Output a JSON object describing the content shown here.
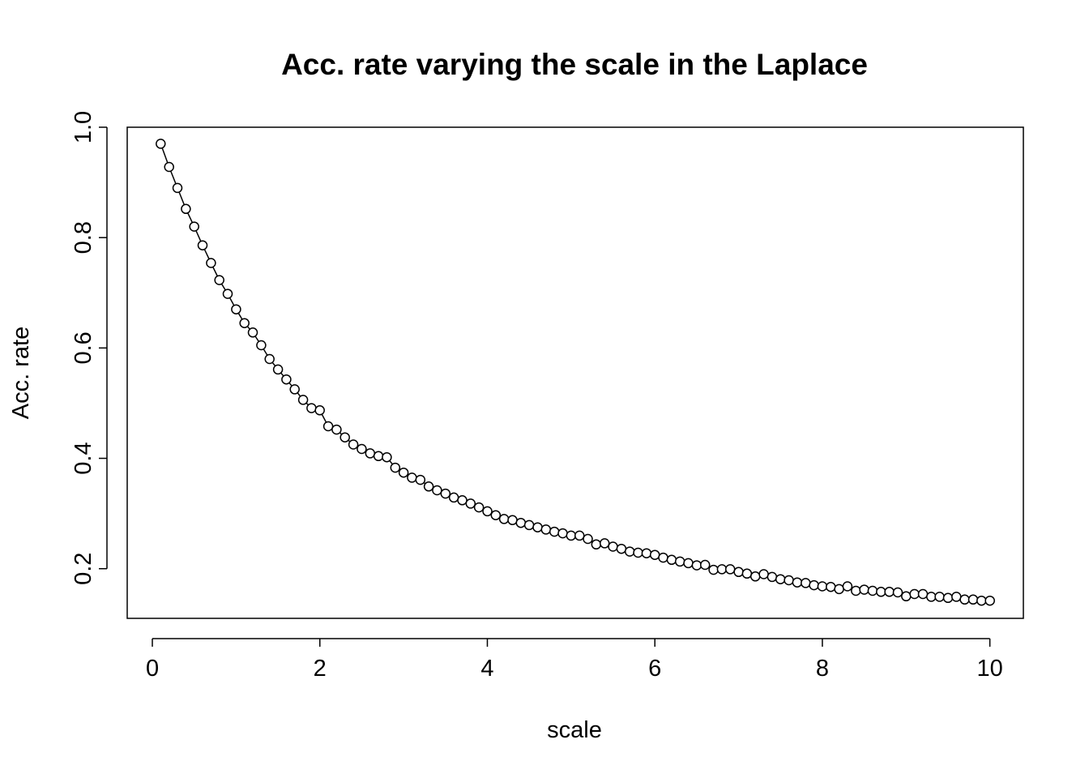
{
  "chart_data": {
    "type": "line",
    "title": "Acc. rate varying the scale in the Laplace",
    "xlabel": "scale",
    "ylabel": "Acc. rate",
    "xlim": [
      -0.3,
      10.4
    ],
    "ylim": [
      0.11,
      1.0
    ],
    "xticks": [
      0,
      2,
      4,
      6,
      8,
      10
    ],
    "xtick_labels": [
      "0",
      "2",
      "4",
      "6",
      "8",
      "10"
    ],
    "yticks": [
      0.2,
      0.4,
      0.6,
      0.8,
      1.0
    ],
    "ytick_labels": [
      "0.2",
      "0.4",
      "0.6",
      "0.8",
      "1.0"
    ],
    "grid": false,
    "marker": "open-circle",
    "series": [
      {
        "x": [
          0.1,
          0.2,
          0.3,
          0.4,
          0.5,
          0.6,
          0.7,
          0.8,
          0.9,
          1.0,
          1.1,
          1.2,
          1.3,
          1.4,
          1.5,
          1.6,
          1.7,
          1.8,
          1.9,
          2.0,
          2.1,
          2.2,
          2.3,
          2.4,
          2.5,
          2.6,
          2.7,
          2.8,
          2.9,
          3.0,
          3.1,
          3.2,
          3.3,
          3.4,
          3.5,
          3.6,
          3.7,
          3.8,
          3.9,
          4.0,
          4.1,
          4.2,
          4.3,
          4.4,
          4.5,
          4.6,
          4.7,
          4.8,
          4.9,
          5.0,
          5.1,
          5.2,
          5.3,
          5.4,
          5.5,
          5.6,
          5.7,
          5.8,
          5.9,
          6.0,
          6.1,
          6.2,
          6.3,
          6.4,
          6.5,
          6.6,
          6.7,
          6.8,
          6.9,
          7.0,
          7.1,
          7.2,
          7.3,
          7.4,
          7.5,
          7.6,
          7.7,
          7.8,
          7.9,
          8.0,
          8.1,
          8.2,
          8.3,
          8.4,
          8.5,
          8.6,
          8.7,
          8.8,
          8.9,
          9.0,
          9.1,
          9.2,
          9.3,
          9.4,
          9.5,
          9.6,
          9.7,
          9.8,
          9.9,
          10.0
        ],
        "values": [
          0.97,
          0.928,
          0.89,
          0.852,
          0.82,
          0.786,
          0.754,
          0.723,
          0.698,
          0.67,
          0.645,
          0.628,
          0.605,
          0.58,
          0.561,
          0.543,
          0.525,
          0.506,
          0.491,
          0.487,
          0.458,
          0.452,
          0.438,
          0.425,
          0.417,
          0.409,
          0.404,
          0.402,
          0.383,
          0.374,
          0.365,
          0.361,
          0.349,
          0.342,
          0.336,
          0.329,
          0.324,
          0.318,
          0.311,
          0.304,
          0.297,
          0.29,
          0.288,
          0.283,
          0.279,
          0.275,
          0.271,
          0.267,
          0.264,
          0.26,
          0.26,
          0.254,
          0.244,
          0.246,
          0.24,
          0.236,
          0.231,
          0.229,
          0.228,
          0.225,
          0.22,
          0.216,
          0.213,
          0.21,
          0.206,
          0.207,
          0.198,
          0.199,
          0.199,
          0.194,
          0.191,
          0.186,
          0.19,
          0.185,
          0.181,
          0.179,
          0.175,
          0.174,
          0.17,
          0.168,
          0.167,
          0.163,
          0.168,
          0.16,
          0.162,
          0.16,
          0.158,
          0.158,
          0.157,
          0.15,
          0.154,
          0.154,
          0.149,
          0.149,
          0.147,
          0.149,
          0.144,
          0.144,
          0.142,
          0.142
        ]
      }
    ]
  }
}
